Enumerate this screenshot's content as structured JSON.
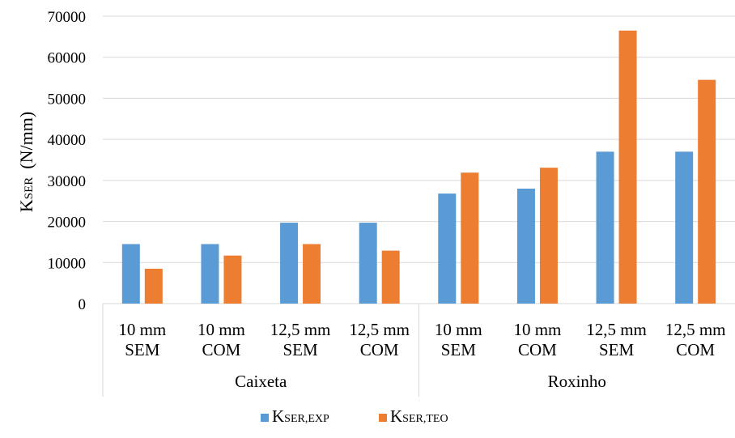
{
  "chart_data": {
    "type": "bar",
    "title": "",
    "ylabel": {
      "main": "K",
      "sub": "SER",
      "units": "(N/mm)"
    },
    "ylim": [
      0,
      70000
    ],
    "yticks": [
      "0",
      "10000",
      "20000",
      "30000",
      "40000",
      "50000",
      "60000",
      "70000"
    ],
    "ytick_values": [
      0,
      10000,
      20000,
      30000,
      40000,
      50000,
      60000,
      70000
    ],
    "grid": true,
    "legend_position": "bottom",
    "categories": [
      {
        "line1": "10 mm",
        "line2": "SEM"
      },
      {
        "line1": "10 mm",
        "line2": "COM"
      },
      {
        "line1": "12,5 mm",
        "line2": "SEM"
      },
      {
        "line1": "12,5 mm",
        "line2": "COM"
      },
      {
        "line1": "10 mm",
        "line2": "SEM"
      },
      {
        "line1": "10 mm",
        "line2": "COM"
      },
      {
        "line1": "12,5 mm",
        "line2": "SEM"
      },
      {
        "line1": "12,5 mm",
        "line2": "COM"
      }
    ],
    "groups": [
      {
        "label": "Caixeta",
        "span": 4
      },
      {
        "label": "Roxinho",
        "span": 4
      }
    ],
    "series": [
      {
        "legend_main": "K",
        "legend_sub": "SER,EXP",
        "color": "#5b9bd5",
        "values": [
          14500,
          14500,
          19700,
          19700,
          26800,
          28000,
          37000,
          37000
        ]
      },
      {
        "legend_main": "K",
        "legend_sub": "SER,TEO",
        "color": "#ed7d31",
        "values": [
          8500,
          11700,
          14500,
          12900,
          31900,
          33100,
          66500,
          54500
        ]
      }
    ]
  }
}
